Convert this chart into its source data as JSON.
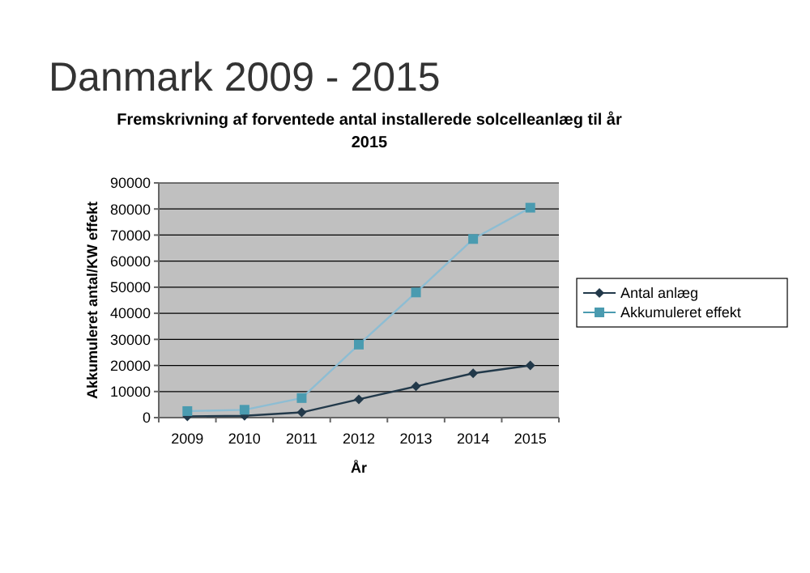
{
  "chart_data": {
    "type": "line",
    "title": "Danmark 2009 - 2015",
    "subtitle": "Fremskrivning af forventede antal installerede solcelleanlæg til år 2015",
    "xlabel": "År",
    "ylabel": "Akkumuleret antal/KW effekt",
    "categories": [
      "2009",
      "2010",
      "2011",
      "2012",
      "2013",
      "2014",
      "2015"
    ],
    "series": [
      {
        "name": "Antal anlæg",
        "color": "#22394a",
        "marker": "diamond",
        "values": [
          500,
          700,
          2000,
          7000,
          12000,
          17000,
          20000
        ]
      },
      {
        "name": "Akkumuleret effekt",
        "color": "#4a9bb0",
        "marker": "square",
        "values": [
          2500,
          3000,
          7500,
          28000,
          48000,
          68500,
          80500
        ]
      }
    ],
    "ylim": [
      0,
      90000
    ],
    "yticks": [
      0,
      10000,
      20000,
      30000,
      40000,
      50000,
      60000,
      70000,
      80000,
      90000
    ],
    "grid": "y",
    "legend": "right"
  }
}
